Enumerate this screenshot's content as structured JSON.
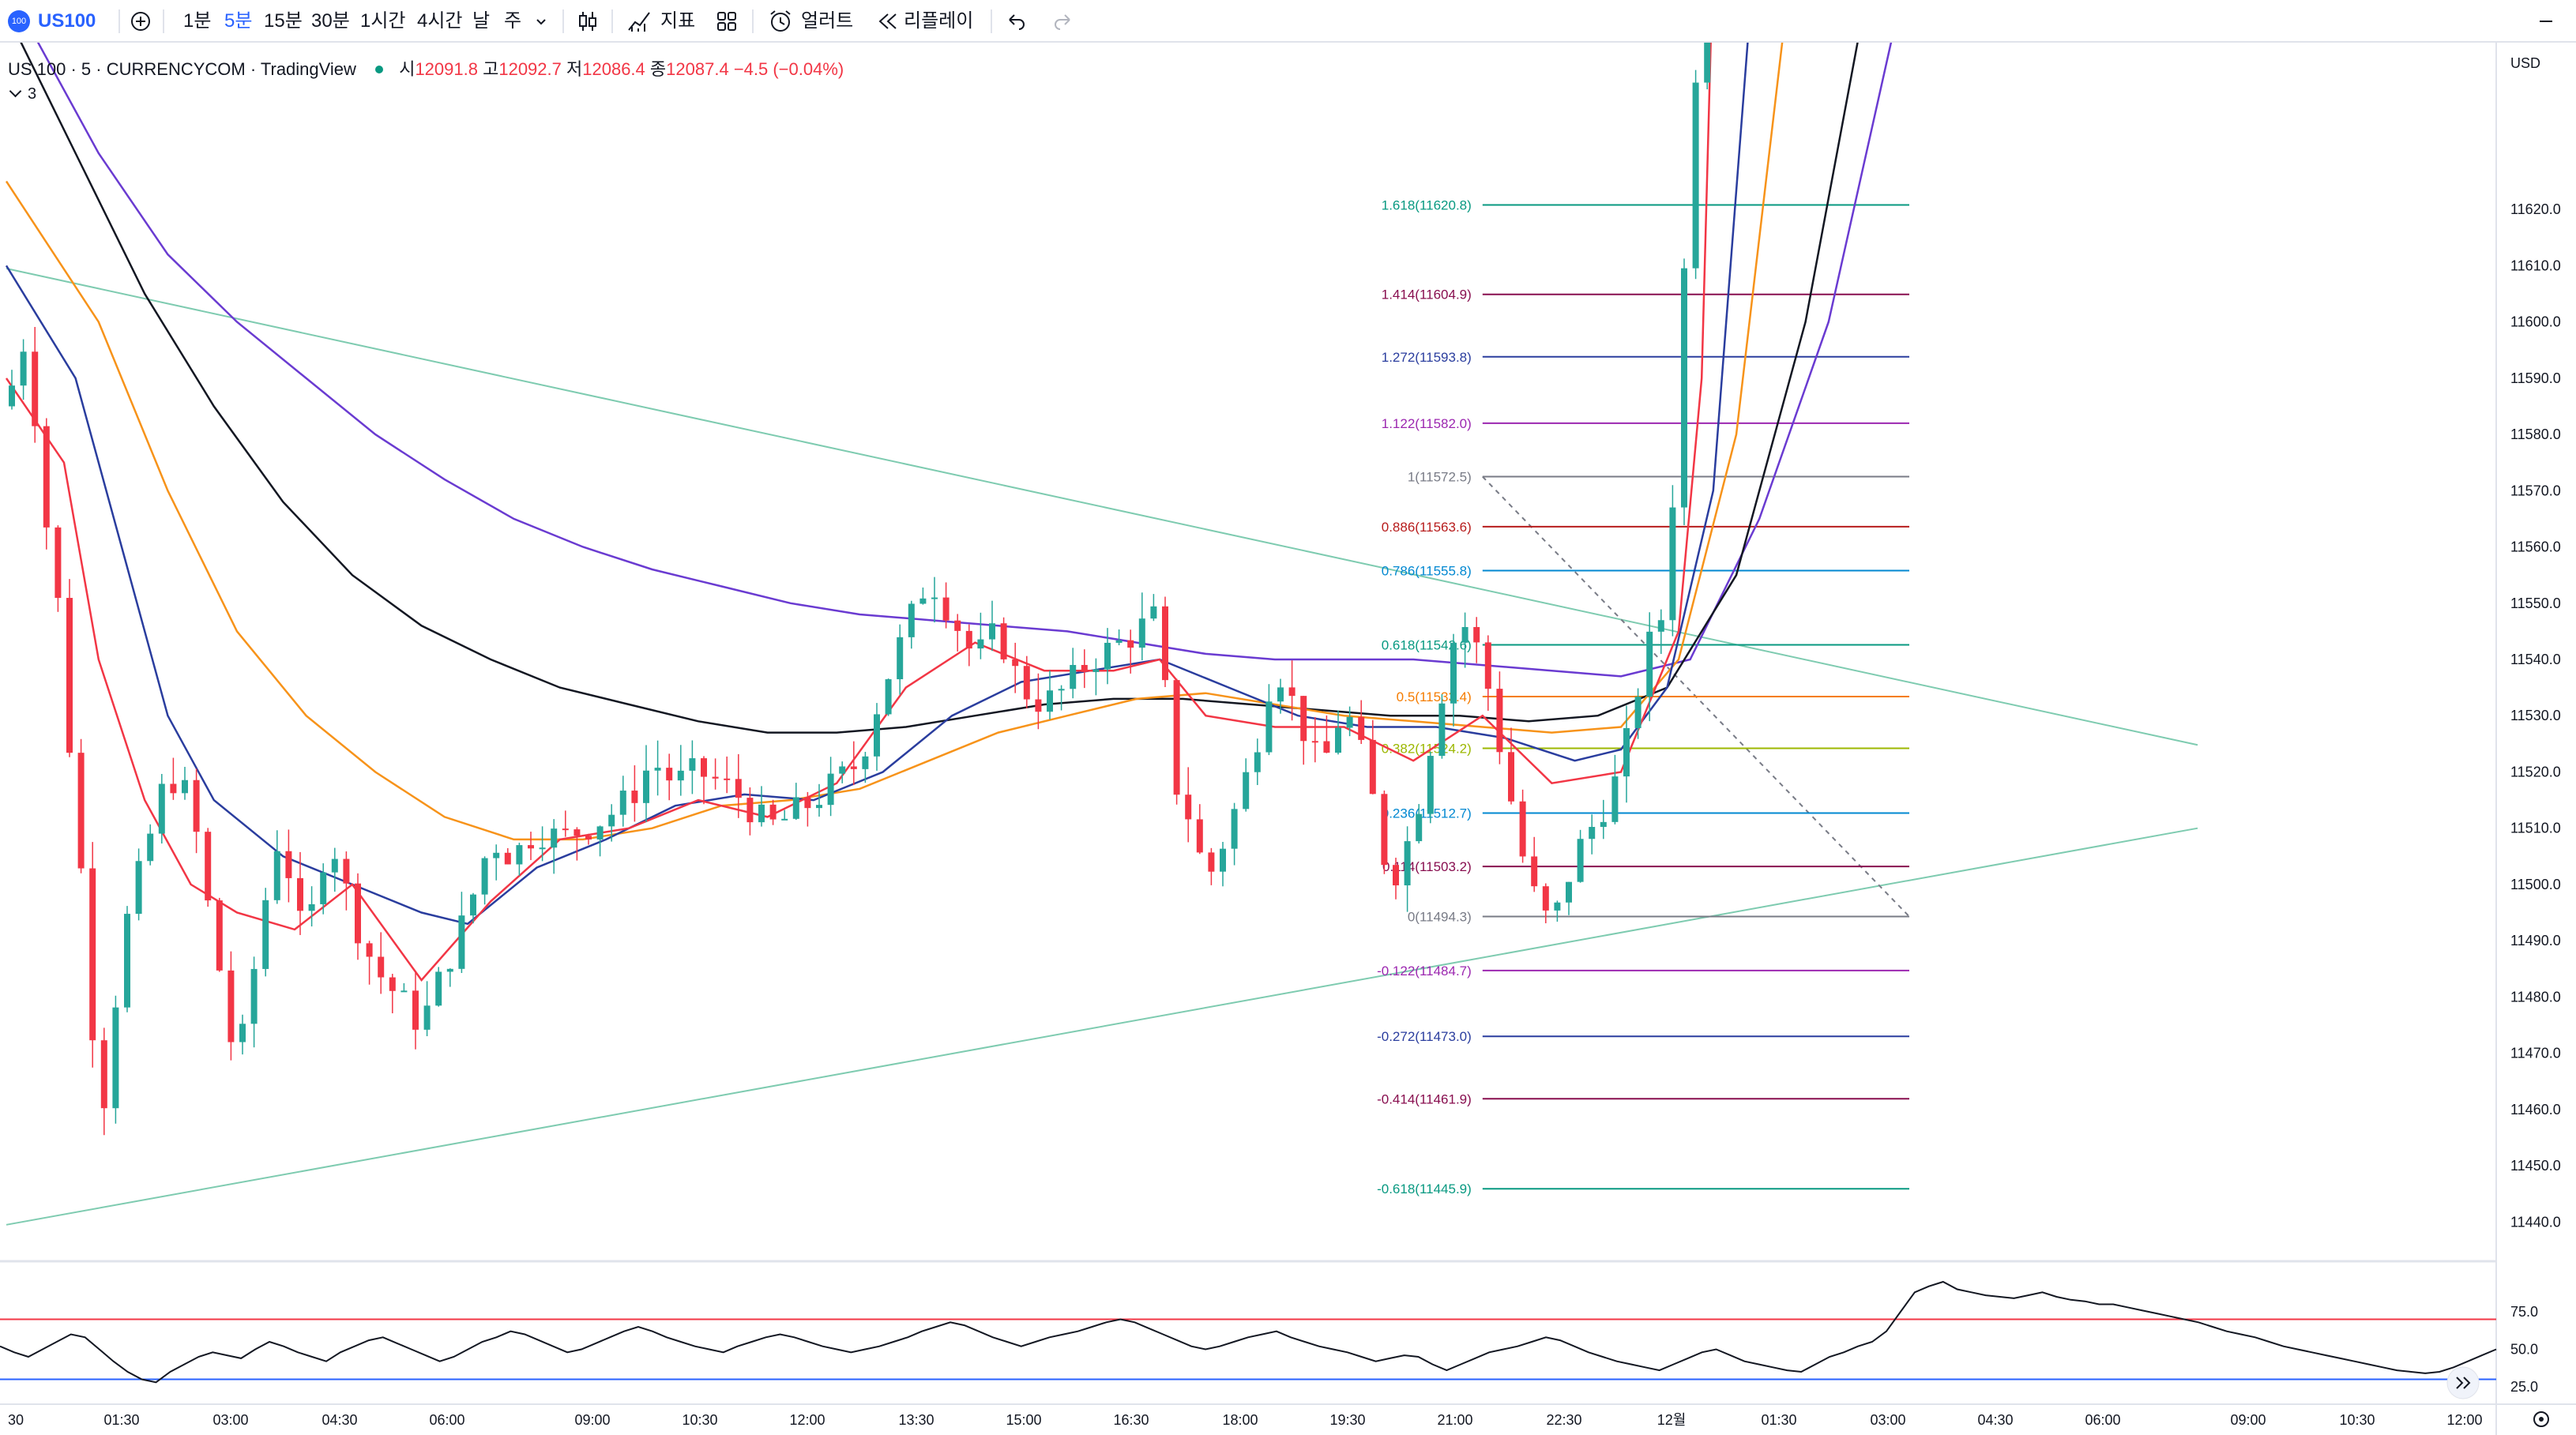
{
  "toolbar": {
    "symbol_badge": "100",
    "symbol": "US100",
    "intervals": [
      "1분",
      "5분",
      "15분",
      "30분",
      "1시간",
      "4시간",
      "날",
      "주"
    ],
    "active_interval": "5분",
    "indicators_label": "지표",
    "alert_label": "얼러트",
    "replay_label": "리플레이"
  },
  "legend": {
    "title": "US 100 · 5 · CURRENCYCOM · TradingView",
    "o_label": "시",
    "o_value": "12091.8",
    "h_label": "고",
    "h_value": "12092.7",
    "l_label": "저",
    "l_value": "12086.4",
    "c_label": "종",
    "c_value": "12087.4",
    "change": "−4.5 (−0.04%)",
    "collapsed_count": "3"
  },
  "colors": {
    "up": "#26a69a",
    "down": "#f23645",
    "ma_fast": "#f23645",
    "ma_blue": "#2a3d9e",
    "ma_orange": "#f7931a",
    "ma_black": "#131722",
    "ma_purple": "#6a3bd1",
    "trend": "#7ecbb0",
    "rsi": "#131722",
    "rsi_upper": "#f23645",
    "rsi_lower": "#2962ff"
  },
  "chart_data": [
    {
      "type": "candlestick",
      "currency": "USD",
      "y_ticks": [
        "11620.0",
        "11610.0",
        "11600.0",
        "11590.0",
        "11580.0",
        "11570.0",
        "11560.0",
        "11550.0",
        "11540.0",
        "11530.0",
        "11520.0",
        "11510.0",
        "11500.0",
        "11490.0",
        "11480.0",
        "11470.0",
        "11460.0",
        "11450.0",
        "11440.0"
      ],
      "ylim": [
        11434,
        11646
      ],
      "x_ticks": [
        "30",
        "01:30",
        "03:00",
        "04:30",
        "06:00",
        "09:00",
        "10:30",
        "12:00",
        "13:30",
        "15:00",
        "16:30",
        "18:00",
        "19:30",
        "21:00",
        "22:30",
        "12월",
        "01:30",
        "03:00",
        "04:30",
        "06:00",
        "09:00",
        "10:30",
        "12:00"
      ],
      "price_path": [
        [
          0,
          11585
        ],
        [
          2,
          11600
        ],
        [
          3,
          11568
        ],
        [
          4,
          11560
        ],
        [
          5,
          11540
        ],
        [
          6,
          11510
        ],
        [
          7,
          11495
        ],
        [
          8,
          11455
        ],
        [
          9,
          11470
        ],
        [
          10,
          11490
        ],
        [
          12,
          11505
        ],
        [
          14,
          11520
        ],
        [
          16,
          11515
        ],
        [
          18,
          11490
        ],
        [
          19,
          11480
        ],
        [
          20,
          11465
        ],
        [
          21,
          11480
        ],
        [
          22,
          11490
        ],
        [
          23,
          11505
        ],
        [
          24,
          11510
        ],
        [
          25,
          11495
        ],
        [
          26,
          11490
        ],
        [
          27,
          11500
        ],
        [
          28,
          11510
        ],
        [
          30,
          11495
        ],
        [
          32,
          11485
        ],
        [
          34,
          11480
        ],
        [
          36,
          11475
        ],
        [
          38,
          11485
        ],
        [
          40,
          11495
        ],
        [
          42,
          11508
        ],
        [
          44,
          11505
        ],
        [
          46,
          11510
        ],
        [
          48,
          11508
        ],
        [
          50,
          11510
        ],
        [
          52,
          11512
        ],
        [
          54,
          11515
        ],
        [
          56,
          11522
        ],
        [
          58,
          11518
        ],
        [
          60,
          11520
        ],
        [
          62,
          11518
        ],
        [
          64,
          11515
        ],
        [
          66,
          11510
        ],
        [
          68,
          11512
        ],
        [
          70,
          11515
        ],
        [
          72,
          11518
        ],
        [
          74,
          11522
        ],
        [
          76,
          11535
        ],
        [
          78,
          11545
        ],
        [
          80,
          11555
        ],
        [
          82,
          11548
        ],
        [
          84,
          11540
        ],
        [
          86,
          11545
        ],
        [
          88,
          11535
        ],
        [
          90,
          11532
        ],
        [
          92,
          11535
        ],
        [
          94,
          11540
        ],
        [
          96,
          11542
        ],
        [
          98,
          11545
        ],
        [
          100,
          11548
        ],
        [
          101,
          11520
        ],
        [
          103,
          11510
        ],
        [
          104,
          11500
        ],
        [
          106,
          11510
        ],
        [
          108,
          11522
        ],
        [
          110,
          11540
        ],
        [
          112,
          11530
        ],
        [
          114,
          11520
        ],
        [
          116,
          11532
        ],
        [
          118,
          11520
        ],
        [
          120,
          11500
        ],
        [
          122,
          11510
        ],
        [
          124,
          11530
        ],
        [
          126,
          11548
        ],
        [
          128,
          11540
        ],
        [
          130,
          11520
        ],
        [
          132,
          11500
        ],
        [
          134,
          11492
        ],
        [
          136,
          11505
        ],
        [
          138,
          11512
        ],
        [
          140,
          11520
        ],
        [
          142,
          11540
        ],
        [
          144,
          11550
        ],
        [
          145,
          11588
        ],
        [
          146,
          11630
        ],
        [
          147,
          11660
        ]
      ],
      "ma_values": {
        "ma_fast_path": [
          [
            0,
            11590
          ],
          [
            5,
            11575
          ],
          [
            8,
            11540
          ],
          [
            12,
            11515
          ],
          [
            16,
            11500
          ],
          [
            20,
            11495
          ],
          [
            25,
            11492
          ],
          [
            30,
            11500
          ],
          [
            36,
            11483
          ],
          [
            42,
            11497
          ],
          [
            48,
            11508
          ],
          [
            54,
            11510
          ],
          [
            60,
            11515
          ],
          [
            66,
            11512
          ],
          [
            72,
            11518
          ],
          [
            78,
            11535
          ],
          [
            84,
            11543
          ],
          [
            90,
            11538
          ],
          [
            96,
            11538
          ],
          [
            100,
            11540
          ],
          [
            104,
            11530
          ],
          [
            110,
            11528
          ],
          [
            116,
            11528
          ],
          [
            122,
            11522
          ],
          [
            128,
            11530
          ],
          [
            134,
            11518
          ],
          [
            140,
            11520
          ],
          [
            145,
            11545
          ],
          [
            147,
            11590
          ],
          [
            148,
            11700
          ]
        ],
        "ma_blue_path": [
          [
            0,
            11610
          ],
          [
            6,
            11590
          ],
          [
            10,
            11560
          ],
          [
            14,
            11530
          ],
          [
            18,
            11515
          ],
          [
            24,
            11505
          ],
          [
            30,
            11500
          ],
          [
            36,
            11495
          ],
          [
            40,
            11493
          ],
          [
            46,
            11503
          ],
          [
            52,
            11508
          ],
          [
            58,
            11514
          ],
          [
            64,
            11516
          ],
          [
            70,
            11515
          ],
          [
            76,
            11520
          ],
          [
            82,
            11530
          ],
          [
            88,
            11536
          ],
          [
            94,
            11538
          ],
          [
            100,
            11540
          ],
          [
            106,
            11535
          ],
          [
            112,
            11530
          ],
          [
            118,
            11528
          ],
          [
            124,
            11528
          ],
          [
            130,
            11526
          ],
          [
            136,
            11522
          ],
          [
            140,
            11524
          ],
          [
            144,
            11535
          ],
          [
            148,
            11570
          ],
          [
            151,
            11650
          ]
        ],
        "ma_orange_path": [
          [
            0,
            11625
          ],
          [
            8,
            11600
          ],
          [
            14,
            11570
          ],
          [
            20,
            11545
          ],
          [
            26,
            11530
          ],
          [
            32,
            11520
          ],
          [
            38,
            11512
          ],
          [
            44,
            11508
          ],
          [
            50,
            11508
          ],
          [
            56,
            11510
          ],
          [
            62,
            11514
          ],
          [
            68,
            11515
          ],
          [
            74,
            11517
          ],
          [
            80,
            11522
          ],
          [
            86,
            11527
          ],
          [
            92,
            11530
          ],
          [
            98,
            11533
          ],
          [
            104,
            11534
          ],
          [
            110,
            11532
          ],
          [
            116,
            11530
          ],
          [
            122,
            11529
          ],
          [
            128,
            11528
          ],
          [
            134,
            11527
          ],
          [
            140,
            11528
          ],
          [
            145,
            11540
          ],
          [
            150,
            11580
          ],
          [
            154,
            11650
          ]
        ],
        "ma_black_path": [
          [
            0,
            11655
          ],
          [
            6,
            11630
          ],
          [
            12,
            11605
          ],
          [
            18,
            11585
          ],
          [
            24,
            11568
          ],
          [
            30,
            11555
          ],
          [
            36,
            11546
          ],
          [
            42,
            11540
          ],
          [
            48,
            11535
          ],
          [
            54,
            11532
          ],
          [
            60,
            11529
          ],
          [
            66,
            11527
          ],
          [
            72,
            11527
          ],
          [
            78,
            11528
          ],
          [
            84,
            11530
          ],
          [
            90,
            11532
          ],
          [
            96,
            11533
          ],
          [
            102,
            11533
          ],
          [
            108,
            11532
          ],
          [
            114,
            11531
          ],
          [
            120,
            11530
          ],
          [
            126,
            11530
          ],
          [
            132,
            11529
          ],
          [
            138,
            11530
          ],
          [
            144,
            11535
          ],
          [
            150,
            11555
          ],
          [
            156,
            11600
          ],
          [
            161,
            11655
          ]
        ],
        "ma_purple_path": [
          [
            0,
            11660
          ],
          [
            8,
            11630
          ],
          [
            14,
            11612
          ],
          [
            20,
            11600
          ],
          [
            26,
            11590
          ],
          [
            32,
            11580
          ],
          [
            38,
            11572
          ],
          [
            44,
            11565
          ],
          [
            50,
            11560
          ],
          [
            56,
            11556
          ],
          [
            62,
            11553
          ],
          [
            68,
            11550
          ],
          [
            74,
            11548
          ],
          [
            80,
            11547
          ],
          [
            86,
            11546
          ],
          [
            92,
            11545
          ],
          [
            98,
            11543
          ],
          [
            104,
            11541
          ],
          [
            110,
            11540
          ],
          [
            116,
            11540
          ],
          [
            122,
            11540
          ],
          [
            128,
            11539
          ],
          [
            134,
            11538
          ],
          [
            140,
            11537
          ],
          [
            146,
            11540
          ],
          [
            152,
            11565
          ],
          [
            158,
            11600
          ],
          [
            164,
            11655
          ]
        ]
      },
      "trendlines": [
        {
          "from": [
            0,
            11609.5
          ],
          "to": [
            190,
            11524.8
          ]
        },
        {
          "from": [
            0,
            11439.5
          ],
          "to": [
            190,
            11510
          ]
        }
      ],
      "fibonacci": {
        "from_price": 11572.5,
        "to_price": 11494.3,
        "levels": [
          {
            "ratio": "1.618",
            "price": "11620.8",
            "color": "#089981"
          },
          {
            "ratio": "1.414",
            "price": "11604.9",
            "color": "#880e4f"
          },
          {
            "ratio": "1.272",
            "price": "11593.8",
            "color": "#2a3d9e"
          },
          {
            "ratio": "1.122",
            "price": "11582.0",
            "color": "#9c27b0"
          },
          {
            "ratio": "1",
            "price": "11572.5",
            "color": "#787b86"
          },
          {
            "ratio": "0.886",
            "price": "11563.6",
            "color": "#b71c1c"
          },
          {
            "ratio": "0.786",
            "price": "11555.8",
            "color": "#0288d1"
          },
          {
            "ratio": "0.618",
            "price": "11542.6",
            "color": "#089981"
          },
          {
            "ratio": "0.5",
            "price": "11533.4",
            "color": "#f57c00"
          },
          {
            "ratio": "0.382",
            "price": "11524.2",
            "color": "#9cb700"
          },
          {
            "ratio": "0.236",
            "price": "11512.7",
            "color": "#0288d1"
          },
          {
            "ratio": "0.114",
            "price": "11503.2",
            "color": "#880e4f"
          },
          {
            "ratio": "0",
            "price": "11494.3",
            "color": "#787b86"
          },
          {
            "ratio": "-0.122",
            "price": "11484.7",
            "color": "#9c27b0"
          },
          {
            "ratio": "-0.272",
            "price": "11473.0",
            "color": "#2a3d9e"
          },
          {
            "ratio": "-0.414",
            "price": "11461.9",
            "color": "#880e4f"
          },
          {
            "ratio": "-0.618",
            "price": "11445.9",
            "color": "#089981"
          }
        ]
      }
    },
    {
      "type": "line",
      "name": "RSI",
      "y_ticks": [
        "75.0",
        "50.0",
        "25.0"
      ],
      "ylim": [
        15,
        105
      ],
      "upper": 70,
      "lower": 30,
      "values": [
        52,
        48,
        45,
        50,
        55,
        60,
        58,
        50,
        42,
        35,
        30,
        28,
        35,
        40,
        45,
        48,
        46,
        44,
        50,
        55,
        52,
        48,
        45,
        42,
        48,
        52,
        56,
        58,
        54,
        50,
        46,
        42,
        45,
        50,
        55,
        58,
        62,
        60,
        56,
        52,
        48,
        50,
        54,
        58,
        62,
        65,
        62,
        58,
        55,
        52,
        50,
        48,
        52,
        55,
        58,
        60,
        58,
        55,
        52,
        50,
        48,
        50,
        52,
        55,
        58,
        62,
        65,
        68,
        66,
        62,
        58,
        55,
        52,
        55,
        58,
        60,
        62,
        65,
        68,
        70,
        68,
        64,
        60,
        56,
        52,
        50,
        52,
        55,
        58,
        60,
        62,
        58,
        55,
        52,
        50,
        48,
        45,
        42,
        44,
        46,
        45,
        40,
        36,
        40,
        44,
        48,
        50,
        52,
        55,
        58,
        56,
        52,
        48,
        45,
        42,
        40,
        38,
        36,
        40,
        44,
        48,
        50,
        46,
        42,
        40,
        38,
        36,
        35,
        40,
        45,
        48,
        52,
        55,
        62,
        75,
        88,
        92,
        95,
        90,
        88,
        86,
        85,
        84,
        86,
        88,
        85,
        83,
        82,
        80,
        80,
        78,
        76,
        74,
        72,
        70,
        68,
        65,
        62,
        60,
        58,
        55,
        52,
        50,
        48,
        46,
        44,
        42,
        40,
        38,
        36,
        35,
        34,
        35,
        38,
        42,
        46,
        50
      ]
    }
  ]
}
